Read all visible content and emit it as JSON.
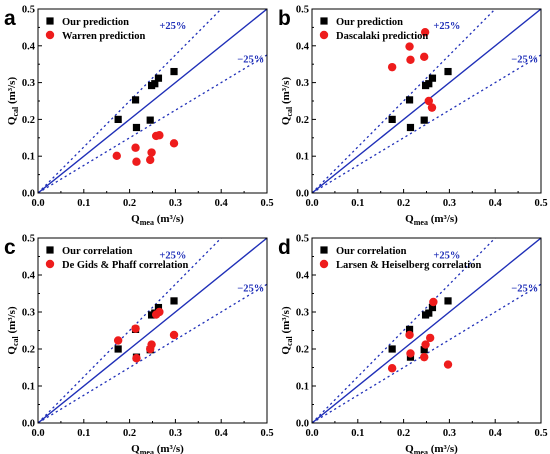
{
  "colors": {
    "ours": "#000000",
    "other": "#ee1c1c",
    "lines": "#1f2fb8"
  },
  "chart_data": [
    {
      "type": "scatter",
      "panel": "a",
      "xlabel": "Qmea (m³/s)",
      "xlabel_main": "Q",
      "xlabel_sub": "mea",
      "xlabel_unit": " (m³/s)",
      "ylabel": "Qcal (m³/s)",
      "ylabel_main": "Q",
      "ylabel_sub": "cal",
      "ylabel_unit": " (m³/s)",
      "xlim": [
        0,
        0.5
      ],
      "ylim": [
        0,
        0.5
      ],
      "xticks": [
        "0.0",
        "0.1",
        "0.2",
        "0.3",
        "0.4",
        "0.5"
      ],
      "yticks": [
        "0.0",
        "0.1",
        "0.2",
        "0.3",
        "0.4",
        "0.5"
      ],
      "band_labels": [
        "+25%",
        "−25%"
      ],
      "legend_position": "top-left",
      "series": [
        {
          "name": "Our prediction",
          "marker": "square",
          "x": [
            0.175,
            0.213,
            0.215,
            0.245,
            0.248,
            0.255,
            0.263,
            0.297
          ],
          "y": [
            0.2,
            0.253,
            0.178,
            0.198,
            0.292,
            0.297,
            0.312,
            0.33
          ]
        },
        {
          "name": "Warren prediction",
          "marker": "circle",
          "x": [
            0.172,
            0.213,
            0.215,
            0.245,
            0.248,
            0.258,
            0.265,
            0.297
          ],
          "y": [
            0.101,
            0.123,
            0.085,
            0.09,
            0.11,
            0.155,
            0.157,
            0.135
          ]
        }
      ]
    },
    {
      "type": "scatter",
      "panel": "b",
      "xlabel": "Qmea (m³/s)",
      "xlabel_main": "Q",
      "xlabel_sub": "mea",
      "xlabel_unit": " (m³/s)",
      "ylabel": "Qcal (m³/s)",
      "ylabel_main": "Q",
      "ylabel_sub": "cal",
      "ylabel_unit": " (m³/s)",
      "xlim": [
        0,
        0.5
      ],
      "ylim": [
        0,
        0.5
      ],
      "xticks": [
        "0.0",
        "0.1",
        "0.2",
        "0.3",
        "0.4",
        "0.5"
      ],
      "yticks": [
        "0.0",
        "0.1",
        "0.2",
        "0.3",
        "0.4",
        "0.5"
      ],
      "band_labels": [
        "+25%",
        "−25%"
      ],
      "legend_position": "top-left",
      "series": [
        {
          "name": "Our prediction",
          "marker": "square",
          "x": [
            0.175,
            0.213,
            0.215,
            0.245,
            0.248,
            0.255,
            0.263,
            0.297
          ],
          "y": [
            0.2,
            0.253,
            0.178,
            0.198,
            0.292,
            0.297,
            0.312,
            0.33
          ]
        },
        {
          "name": "Dascalaki prediction",
          "marker": "circle",
          "x": [
            0.175,
            0.213,
            0.215,
            0.245,
            0.247,
            0.255,
            0.262
          ],
          "y": [
            0.342,
            0.398,
            0.362,
            0.37,
            0.437,
            0.25,
            0.232
          ]
        }
      ]
    },
    {
      "type": "scatter",
      "panel": "c",
      "xlabel": "Qmea (m³/s)",
      "xlabel_main": "Q",
      "xlabel_sub": "mea",
      "xlabel_unit": " (m³/s)",
      "ylabel": "Qcal (m³/s)",
      "ylabel_main": "Q",
      "ylabel_sub": "cal",
      "ylabel_unit": " (m³/s)",
      "xlim": [
        0,
        0.5
      ],
      "ylim": [
        0,
        0.5
      ],
      "xticks": [
        "0.0",
        "0.1",
        "0.2",
        "0.3",
        "0.4",
        "0.5"
      ],
      "yticks": [
        "0.0",
        "0.1",
        "0.2",
        "0.3",
        "0.4",
        "0.5"
      ],
      "band_labels": [
        "+25%",
        "−25%"
      ],
      "legend_position": "top-left",
      "series": [
        {
          "name": "Our correlation",
          "marker": "square",
          "x": [
            0.175,
            0.213,
            0.215,
            0.245,
            0.248,
            0.255,
            0.263,
            0.297
          ],
          "y": [
            0.2,
            0.253,
            0.178,
            0.198,
            0.292,
            0.297,
            0.312,
            0.33
          ]
        },
        {
          "name": "De Gids & Phaff correlation",
          "marker": "circle",
          "x": [
            0.175,
            0.213,
            0.215,
            0.245,
            0.248,
            0.258,
            0.265,
            0.297
          ],
          "y": [
            0.223,
            0.255,
            0.175,
            0.2,
            0.212,
            0.293,
            0.3,
            0.238
          ]
        }
      ]
    },
    {
      "type": "scatter",
      "panel": "d",
      "xlabel": "Qmea (m³/s)",
      "xlabel_main": "Q",
      "xlabel_sub": "mea",
      "xlabel_unit": " (m³/s)",
      "ylabel": "Qcal (m³/s)",
      "ylabel_main": "Q",
      "ylabel_sub": "cal",
      "ylabel_unit": " (m³/s)",
      "xlim": [
        0,
        0.5
      ],
      "ylim": [
        0,
        0.5
      ],
      "xticks": [
        "0.0",
        "0.1",
        "0.2",
        "0.3",
        "0.4",
        "0.5"
      ],
      "yticks": [
        "0.0",
        "0.1",
        "0.2",
        "0.3",
        "0.4",
        "0.5"
      ],
      "band_labels": [
        "+25%",
        "−25%"
      ],
      "legend_position": "top-left",
      "series": [
        {
          "name": "Our correlation",
          "marker": "square",
          "x": [
            0.175,
            0.213,
            0.215,
            0.245,
            0.248,
            0.255,
            0.263,
            0.297
          ],
          "y": [
            0.2,
            0.253,
            0.178,
            0.198,
            0.292,
            0.297,
            0.312,
            0.33
          ]
        },
        {
          "name": "Larsen & Heiselberg correlation",
          "marker": "circle",
          "x": [
            0.175,
            0.213,
            0.215,
            0.245,
            0.248,
            0.258,
            0.265,
            0.297
          ],
          "y": [
            0.148,
            0.238,
            0.188,
            0.178,
            0.212,
            0.23,
            0.327,
            0.158
          ]
        }
      ]
    }
  ]
}
